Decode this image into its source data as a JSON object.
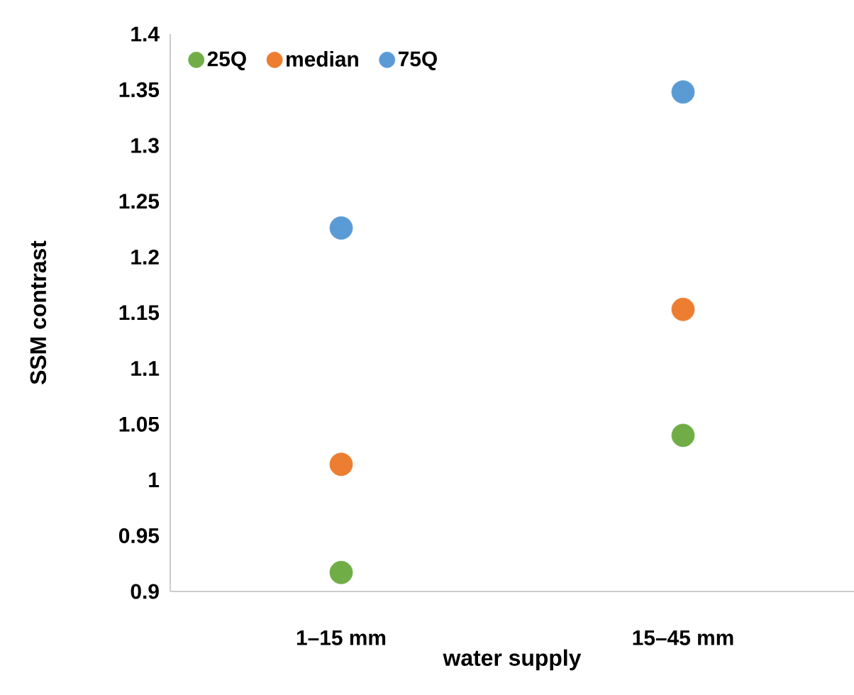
{
  "chart_data": {
    "type": "scatter",
    "xlabel": "water supply",
    "ylabel": "SSM contrast",
    "categories": [
      "1–15 mm",
      "15–45 mm"
    ],
    "series": [
      {
        "name": "25Q",
        "color": "#70ad47",
        "values": [
          0.917,
          1.04
        ]
      },
      {
        "name": "median",
        "color": "#ed7d31",
        "values": [
          1.014,
          1.153
        ]
      },
      {
        "name": "75Q",
        "color": "#5b9bd5",
        "values": [
          1.226,
          1.348
        ]
      }
    ],
    "ylim": [
      0.9,
      1.4
    ],
    "yticks": [
      0.9,
      0.95,
      1,
      1.05,
      1.1,
      1.15,
      1.2,
      1.25,
      1.3,
      1.35,
      1.4
    ],
    "marker": "circle",
    "grid": false,
    "legend": "top left"
  }
}
